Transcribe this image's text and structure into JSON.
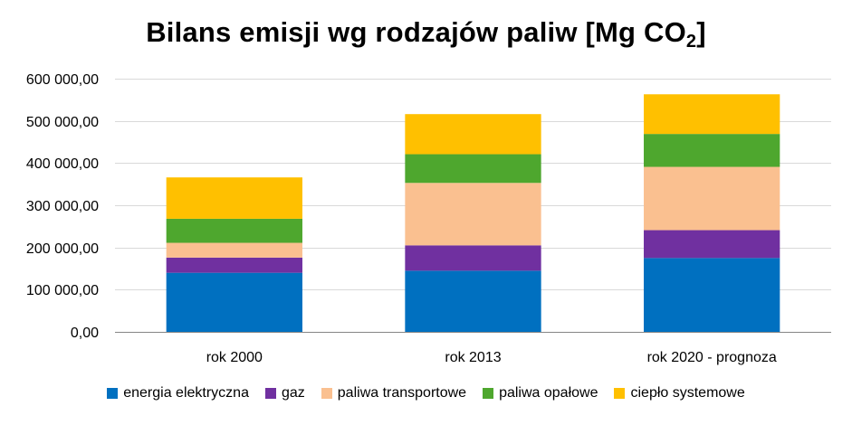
{
  "chart_data": {
    "type": "bar",
    "stacked": true,
    "title_main": "Bilans emisji wg rodzajów paliw [Mg CO",
    "title_sub": "2",
    "title_end": "]",
    "categories": [
      "rok 2000",
      "rok 2013",
      "rok 2020 - prognoza"
    ],
    "ylim": [
      0,
      600000
    ],
    "yticks": [
      0,
      100000,
      200000,
      300000,
      400000,
      500000,
      600000
    ],
    "ytick_labels": [
      "0,00",
      "100 000,00",
      "200 000,00",
      "300 000,00",
      "400 000,00",
      "500 000,00",
      "600 000,00"
    ],
    "grid": true,
    "legend_position": "bottom",
    "series": [
      {
        "name": "energia elektryczna",
        "color": "#0070C0",
        "values": [
          140000,
          145000,
          175000
        ]
      },
      {
        "name": "gaz",
        "color": "#7030A0",
        "values": [
          36000,
          60000,
          66000
        ]
      },
      {
        "name": "paliwa transportowe",
        "color": "#FAC090",
        "values": [
          35000,
          148000,
          150000
        ]
      },
      {
        "name": "paliwa opałowe",
        "color": "#4EA72E",
        "values": [
          57000,
          68000,
          78000
        ]
      },
      {
        "name": "ciepło systemowe",
        "color": "#FFC000",
        "values": [
          98000,
          95000,
          94000
        ]
      }
    ]
  }
}
